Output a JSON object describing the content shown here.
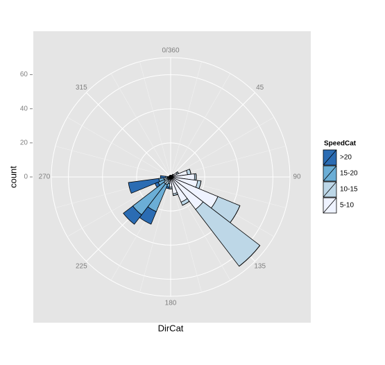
{
  "chart_data": {
    "type": "bar",
    "coord": "polar",
    "x_label": "DirCat",
    "y_label": "count",
    "x": [
      0,
      15,
      30,
      45,
      60,
      75,
      90,
      105,
      120,
      135,
      150,
      165,
      180,
      195,
      210,
      225,
      240,
      255,
      270,
      285,
      300,
      315,
      330,
      345
    ],
    "bin_width": 15,
    "xlim": [
      0,
      360
    ],
    "xticks": [
      {
        "value": 0,
        "label": "0/360"
      },
      45,
      90,
      135,
      180,
      225,
      270,
      315
    ],
    "ylim": [
      0,
      70
    ],
    "yticks": [
      0,
      20,
      40,
      60
    ],
    "grid": true,
    "legend_title": "SpeedCat",
    "legend_position": "right",
    "series": [
      {
        "name": ">20",
        "color": "#2b6cb3",
        "values": [
          0,
          0,
          0,
          0,
          0,
          0,
          0,
          0,
          0,
          0,
          0,
          0,
          0,
          1,
          8,
          7,
          2,
          18,
          3,
          0,
          0,
          0,
          0,
          0
        ]
      },
      {
        "name": "15-20",
        "color": "#6baed6",
        "values": [
          0,
          0,
          0,
          0,
          0,
          0,
          0,
          0,
          0,
          0,
          0,
          0,
          0,
          2,
          17,
          23,
          4,
          3,
          1,
          0,
          0,
          0,
          0,
          0
        ]
      },
      {
        "name": "10-15",
        "color": "#bdd7e7",
        "values": [
          0,
          0,
          0,
          0,
          1,
          2,
          1,
          2,
          14,
          42,
          2,
          1,
          1,
          1,
          3,
          3,
          2,
          2,
          1,
          0,
          0,
          0,
          0,
          0
        ]
      },
      {
        "name": "5-10",
        "color": "#eff3ff",
        "values": [
          1,
          1,
          1,
          2,
          4,
          10,
          14,
          16,
          30,
          24,
          16,
          10,
          6,
          3,
          2,
          2,
          2,
          2,
          1,
          1,
          1,
          1,
          1,
          1
        ]
      }
    ]
  }
}
